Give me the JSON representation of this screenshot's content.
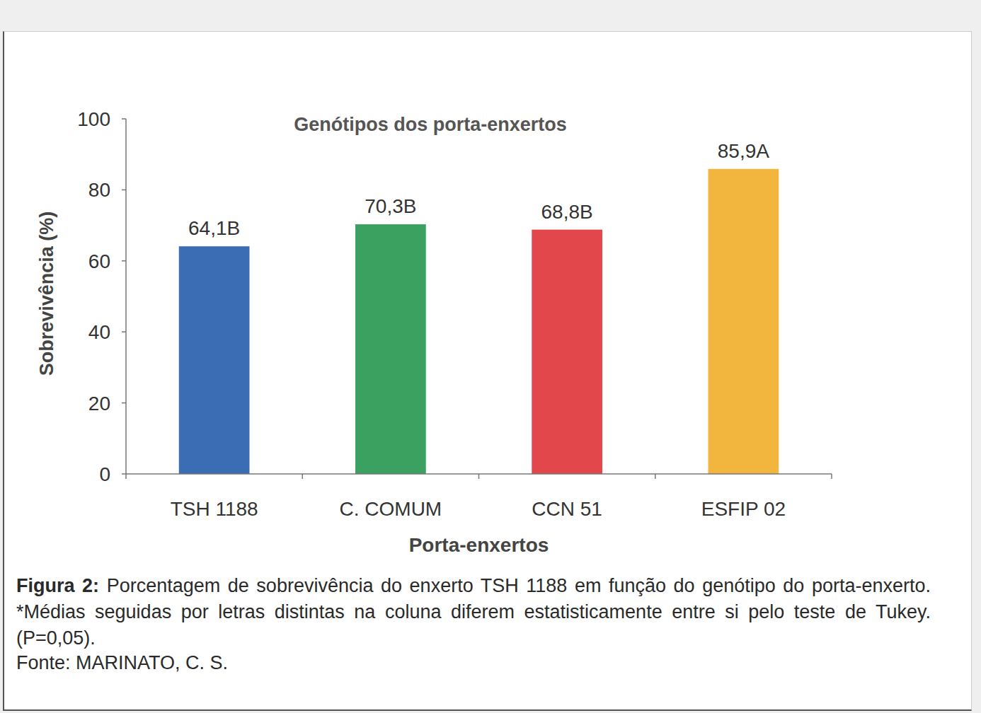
{
  "chart_data": {
    "type": "bar",
    "title": "Genótipos dos porta-enxertos",
    "x_label": "Porta-enxertos",
    "y_label": "Sobrevivência (%)",
    "categories": [
      "TSH 1188",
      "C. COMUM",
      "CCN 51",
      "ESFIP 02"
    ],
    "values": [
      64.1,
      70.3,
      68.8,
      85.9
    ],
    "value_labels": [
      "64,1B",
      "70,3B",
      "68,8B",
      "85,9A"
    ],
    "colors": [
      "#3b6db5",
      "#3aa160",
      "#e2474c",
      "#f2b53e"
    ],
    "data_labels": true,
    "grid": false,
    "ylim": [
      0,
      100
    ],
    "yticks": [
      0,
      20,
      40,
      60,
      80,
      100
    ],
    "caption": {
      "label": "Figura 2:",
      "text": "Porcentagem de sobrevivência do enxerto TSH 1188 em função do genótipo do porta-enxerto. *Médias seguidas por letras distintas na coluna diferem estatisticamente entre si pelo teste de Tukey. (P=0,05)."
    },
    "source": "Fonte: MARINATO, C. S."
  }
}
